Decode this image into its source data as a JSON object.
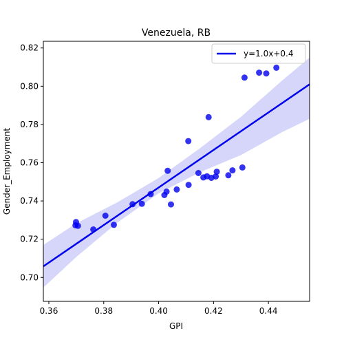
{
  "chart_data": {
    "type": "scatter",
    "title": "Venezuela, RB",
    "xlabel": "GPI",
    "ylabel": "Gender_Employment",
    "xlim": [
      0.358,
      0.455
    ],
    "ylim": [
      0.6875,
      0.8235
    ],
    "xticks": [
      0.36,
      0.38,
      0.4,
      0.42,
      0.44
    ],
    "xtick_labels": [
      "0.36",
      "0.38",
      "0.40",
      "0.42",
      "0.44"
    ],
    "yticks": [
      0.7,
      0.72,
      0.74,
      0.76,
      0.78,
      0.8,
      0.82
    ],
    "ytick_labels": [
      "0.70",
      "0.72",
      "0.74",
      "0.76",
      "0.78",
      "0.80",
      "0.82"
    ],
    "grid": false,
    "legend": {
      "position": "top-right",
      "entries": [
        "y=1.0x+0.4"
      ]
    },
    "colors": {
      "points": "#0000ee",
      "line": "#0000ee",
      "band": "#c8c8f8"
    },
    "series": [
      {
        "kind": "points",
        "x": [
          0.3697,
          0.3699,
          0.3706,
          0.3762,
          0.3806,
          0.3837,
          0.3905,
          0.3939,
          0.3971,
          0.4021,
          0.4029,
          0.4033,
          0.4045,
          0.4066,
          0.4108,
          0.4109,
          0.4145,
          0.4163,
          0.4176,
          0.4182,
          0.4192,
          0.4208,
          0.4212,
          0.4254,
          0.4269,
          0.4305,
          0.4313,
          0.4366,
          0.4392,
          0.4429
        ],
        "y": [
          0.7273,
          0.729,
          0.727,
          0.7251,
          0.7323,
          0.7275,
          0.7383,
          0.7385,
          0.7436,
          0.7431,
          0.7449,
          0.7558,
          0.7382,
          0.746,
          0.7713,
          0.7484,
          0.7546,
          0.7523,
          0.7529,
          0.7838,
          0.7521,
          0.7528,
          0.7553,
          0.7534,
          0.756,
          0.7575,
          0.8045,
          0.8071,
          0.8067,
          0.8097
        ]
      },
      {
        "kind": "fit",
        "name": "y=1.0x+0.4",
        "x": [
          0.358,
          0.455
        ],
        "y": [
          0.7058,
          0.801
        ]
      }
    ],
    "confidence_band": {
      "x": [
        0.358,
        0.37,
        0.385,
        0.4,
        0.415,
        0.43,
        0.445,
        0.455
      ],
      "lower": [
        0.6947,
        0.7107,
        0.7287,
        0.744,
        0.755,
        0.764,
        0.776,
        0.783
      ],
      "upper": [
        0.717,
        0.7283,
        0.7393,
        0.752,
        0.7675,
        0.784,
        0.803,
        0.815
      ]
    }
  }
}
